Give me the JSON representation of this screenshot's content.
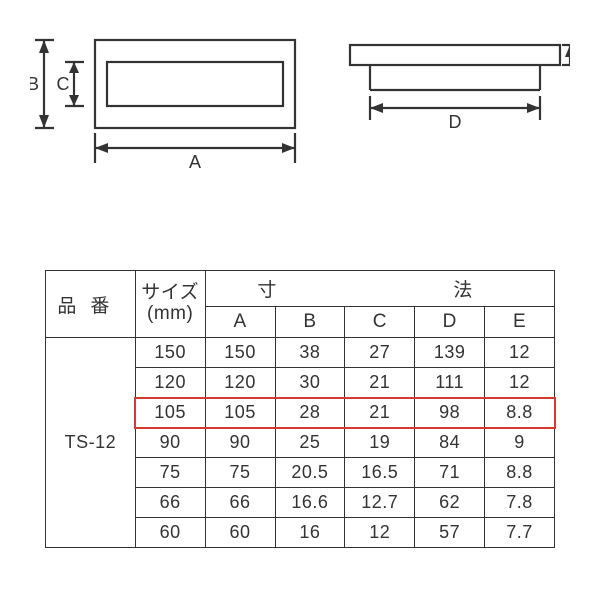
{
  "diagram": {
    "labels": [
      "A",
      "B",
      "C",
      "D",
      "E"
    ],
    "line_color": "#333333",
    "line_width": 2.2,
    "font_size": 18
  },
  "table": {
    "type": "table",
    "border_color": "#333333",
    "border_width": 1.5,
    "font_size": 18,
    "text_color": "#333333",
    "background_color": "#ffffff",
    "highlight": {
      "row_index": 2,
      "color": "#d63a2e",
      "border_width": 2
    },
    "headers": {
      "part_no": "品番",
      "size": "サイズ",
      "size_unit": "(mm)",
      "dimensions": "寸法",
      "cols": [
        "A",
        "B",
        "C",
        "D",
        "E"
      ]
    },
    "part_no": "TS-12",
    "rows": [
      {
        "size": "150",
        "A": "150",
        "B": "38",
        "C": "27",
        "D": "139",
        "E": "12"
      },
      {
        "size": "120",
        "A": "120",
        "B": "30",
        "C": "21",
        "D": "111",
        "E": "12"
      },
      {
        "size": "105",
        "A": "105",
        "B": "28",
        "C": "21",
        "D": "98",
        "E": "8.8"
      },
      {
        "size": "90",
        "A": "90",
        "B": "25",
        "C": "19",
        "D": "84",
        "E": "9"
      },
      {
        "size": "75",
        "A": "75",
        "B": "20.5",
        "C": "16.5",
        "D": "71",
        "E": "8.8"
      },
      {
        "size": "66",
        "A": "66",
        "B": "16.6",
        "C": "12.7",
        "D": "62",
        "E": "7.8"
      },
      {
        "size": "60",
        "A": "60",
        "B": "16",
        "C": "12",
        "D": "57",
        "E": "7.7"
      }
    ]
  }
}
